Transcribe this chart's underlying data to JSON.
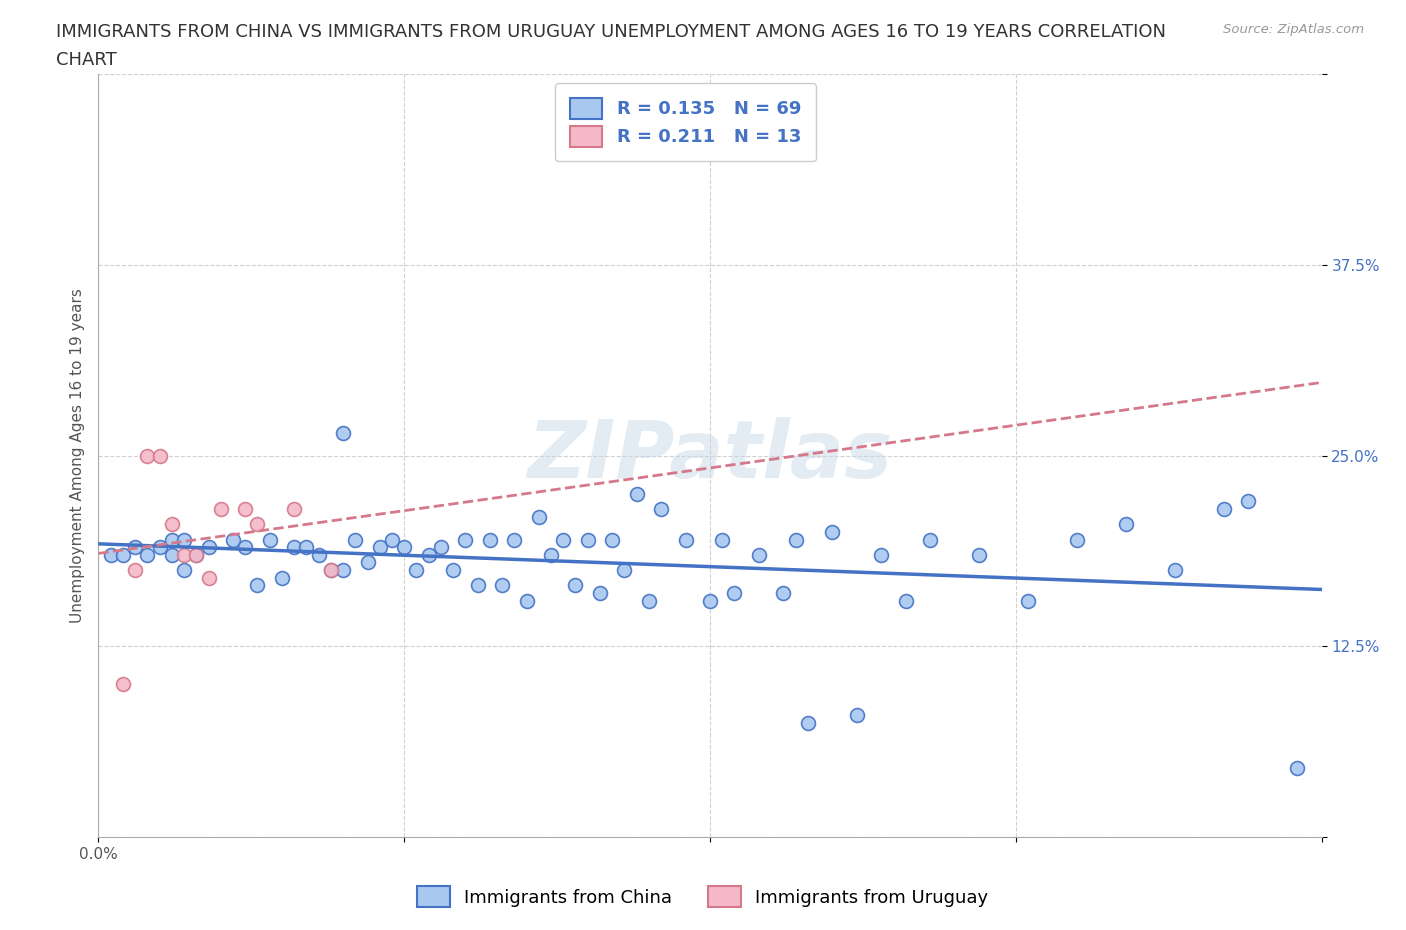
{
  "title_line1": "IMMIGRANTS FROM CHINA VS IMMIGRANTS FROM URUGUAY UNEMPLOYMENT AMONG AGES 16 TO 19 YEARS CORRELATION",
  "title_line2": "CHART",
  "source": "Source: ZipAtlas.com",
  "ylabel": "Unemployment Among Ages 16 to 19 years",
  "xlim": [
    0.0,
    0.5
  ],
  "ylim": [
    0.0,
    0.5
  ],
  "xticks": [
    0.0,
    0.125,
    0.25,
    0.375,
    0.5
  ],
  "yticks": [
    0.0,
    0.125,
    0.25,
    0.375,
    0.5
  ],
  "xticklabels_show": {
    "0.0": "0.0%"
  },
  "yticklabels_show": {
    "0.125": "12.5%",
    "0.25": "25.0%",
    "0.375": "37.5%"
  },
  "legend1_label": "Immigrants from China",
  "legend2_label": "Immigrants from Uruguay",
  "R_china": 0.135,
  "N_china": 69,
  "R_uruguay": 0.211,
  "N_uruguay": 13,
  "china_color": "#a8c8f0",
  "china_line_color": "#4472c4",
  "uruguay_color": "#f4b8c8",
  "uruguay_line_color": "#d4788a",
  "china_x": [
    0.005,
    0.01,
    0.015,
    0.02,
    0.025,
    0.03,
    0.03,
    0.035,
    0.035,
    0.04,
    0.045,
    0.055,
    0.06,
    0.065,
    0.07,
    0.075,
    0.08,
    0.085,
    0.09,
    0.095,
    0.1,
    0.1,
    0.105,
    0.11,
    0.115,
    0.12,
    0.125,
    0.13,
    0.135,
    0.14,
    0.145,
    0.15,
    0.155,
    0.16,
    0.165,
    0.17,
    0.175,
    0.18,
    0.185,
    0.19,
    0.195,
    0.2,
    0.205,
    0.21,
    0.215,
    0.22,
    0.225,
    0.23,
    0.24,
    0.25,
    0.255,
    0.26,
    0.27,
    0.28,
    0.285,
    0.29,
    0.3,
    0.31,
    0.32,
    0.33,
    0.34,
    0.36,
    0.38,
    0.4,
    0.42,
    0.44,
    0.46,
    0.47,
    0.49
  ],
  "china_y": [
    0.185,
    0.185,
    0.19,
    0.185,
    0.19,
    0.195,
    0.185,
    0.195,
    0.175,
    0.185,
    0.19,
    0.195,
    0.19,
    0.165,
    0.195,
    0.17,
    0.19,
    0.19,
    0.185,
    0.175,
    0.265,
    0.175,
    0.195,
    0.18,
    0.19,
    0.195,
    0.19,
    0.175,
    0.185,
    0.19,
    0.175,
    0.195,
    0.165,
    0.195,
    0.165,
    0.195,
    0.155,
    0.21,
    0.185,
    0.195,
    0.165,
    0.195,
    0.16,
    0.195,
    0.175,
    0.225,
    0.155,
    0.215,
    0.195,
    0.155,
    0.195,
    0.16,
    0.185,
    0.16,
    0.195,
    0.075,
    0.2,
    0.08,
    0.185,
    0.155,
    0.195,
    0.185,
    0.155,
    0.195,
    0.205,
    0.175,
    0.215,
    0.22,
    0.045
  ],
  "uruguay_x": [
    0.01,
    0.015,
    0.02,
    0.025,
    0.03,
    0.035,
    0.04,
    0.045,
    0.05,
    0.06,
    0.065,
    0.08,
    0.095
  ],
  "uruguay_y": [
    0.1,
    0.175,
    0.25,
    0.25,
    0.205,
    0.185,
    0.185,
    0.17,
    0.215,
    0.215,
    0.205,
    0.215,
    0.175
  ],
  "watermark": "ZIPatlas",
  "background_color": "#ffffff",
  "grid_color": "#d0d0d0",
  "title_fontsize": 13,
  "axis_label_fontsize": 11,
  "tick_fontsize": 11,
  "legend_fontsize": 13,
  "marker_size": 100,
  "marker_linewidth": 1.2
}
